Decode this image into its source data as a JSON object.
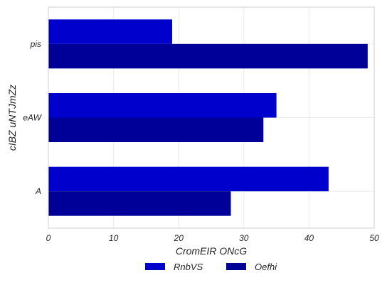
{
  "chart_data": {
    "type": "bar",
    "orientation": "horizontal",
    "categories": [
      "pis",
      "eAW",
      "A"
    ],
    "series": [
      {
        "name": "RnbVS",
        "values": [
          19,
          35,
          43
        ],
        "color": "#0000cc"
      },
      {
        "name": "Oefhi",
        "values": [
          49,
          33,
          28
        ],
        "color": "#000099"
      }
    ],
    "xlabel": "CromEIR  ONcG",
    "ylabel": "cIBZ uNTJmZz",
    "xlim": [
      0,
      50
    ],
    "xticks": [
      0,
      10,
      20,
      30,
      40,
      50
    ],
    "grid": true,
    "legend_position": "bottom-center"
  }
}
